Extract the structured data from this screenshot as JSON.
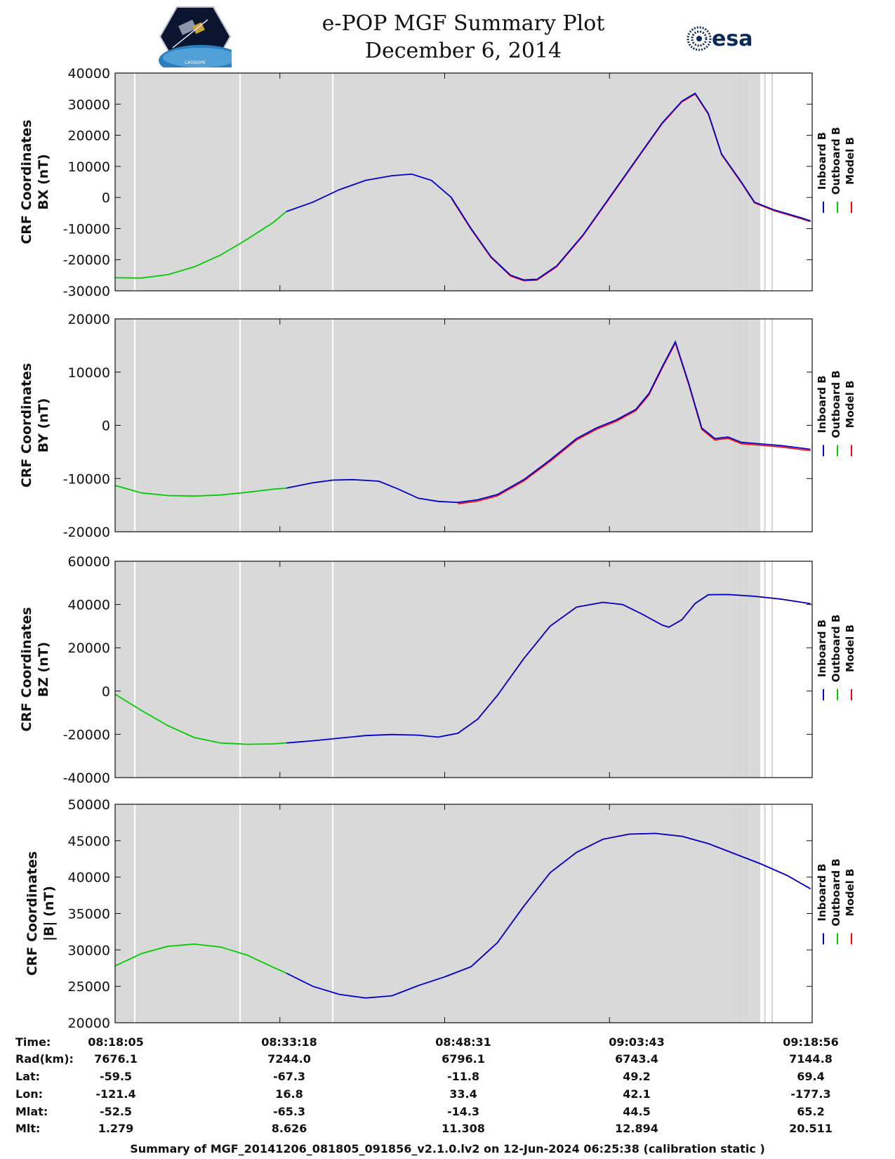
{
  "header": {
    "title": "e-POP MGF Summary Plot",
    "date": "December 6, 2014",
    "logo_left_caption": "CASSIOPE",
    "logo_right_text": "esa"
  },
  "colors": {
    "background": "#d9d9d9",
    "inboard": "#0000cc",
    "outboard": "#00cc00",
    "model": "#ff0000",
    "gap_line": "#ffffff"
  },
  "legend": {
    "labels": [
      "Inboard B",
      "Outboard B",
      "Model B"
    ],
    "mark_colors": [
      "#0000cc",
      "#00cc00",
      "#ff0000"
    ]
  },
  "chart_data": [
    {
      "type": "line",
      "title": "",
      "ylabel_line1": "CRF Coordinates",
      "ylabel_line2": "BX (nT)",
      "ylim": [
        -30000,
        40000
      ],
      "yticks": [
        -30000,
        -20000,
        -10000,
        0,
        10000,
        20000,
        30000,
        40000
      ],
      "xlim": [
        0,
        1
      ]
    },
    {
      "type": "line",
      "title": "",
      "ylabel_line1": "CRF Coordinates",
      "ylabel_line2": "BY (nT)",
      "ylim": [
        -20000,
        20000
      ],
      "yticks": [
        -20000,
        -10000,
        0,
        10000,
        20000
      ],
      "xlim": [
        0,
        1
      ]
    },
    {
      "type": "line",
      "title": "",
      "ylabel_line1": "CRF Coordinates",
      "ylabel_line2": "BZ (nT)",
      "ylim": [
        -40000,
        60000
      ],
      "yticks": [
        -40000,
        -20000,
        0,
        20000,
        40000,
        60000
      ],
      "xlim": [
        0,
        1
      ]
    },
    {
      "type": "line",
      "title": "",
      "ylabel_line1": "CRF Coordinates",
      "ylabel_line2": "|B| (nT)",
      "ylim": [
        20000,
        50000
      ],
      "yticks": [
        20000,
        25000,
        30000,
        35000,
        40000,
        45000,
        50000
      ],
      "xlim": [
        0,
        1
      ]
    }
  ],
  "series_data": {
    "outboard_end": 0.26,
    "bx": [
      [
        0,
        -25800
      ],
      [
        0.04,
        -25900
      ],
      [
        0.08,
        -24800
      ],
      [
        0.12,
        -22300
      ],
      [
        0.16,
        -18500
      ],
      [
        0.2,
        -13500
      ],
      [
        0.24,
        -8000
      ],
      [
        0.26,
        -4500
      ],
      [
        0.3,
        -1500
      ],
      [
        0.34,
        2500
      ],
      [
        0.38,
        5500
      ],
      [
        0.42,
        7000
      ],
      [
        0.45,
        7500
      ],
      [
        0.48,
        5500
      ],
      [
        0.51,
        0
      ],
      [
        0.54,
        -10000
      ],
      [
        0.57,
        -19000
      ],
      [
        0.6,
        -25000
      ],
      [
        0.62,
        -26500
      ],
      [
        0.64,
        -26300
      ],
      [
        0.67,
        -22000
      ],
      [
        0.71,
        -12000
      ],
      [
        0.75,
        0
      ],
      [
        0.79,
        12000
      ],
      [
        0.83,
        24000
      ],
      [
        0.86,
        31000
      ],
      [
        0.88,
        33500
      ],
      [
        0.9,
        27000
      ],
      [
        0.92,
        14000
      ],
      [
        0.95,
        5000
      ],
      [
        0.97,
        -1500
      ],
      [
        1.0,
        -4000
      ],
      [
        1.04,
        -6500
      ],
      [
        1.055,
        -7500
      ]
    ],
    "by": [
      [
        0,
        -11300
      ],
      [
        0.04,
        -12700
      ],
      [
        0.08,
        -13200
      ],
      [
        0.12,
        -13300
      ],
      [
        0.16,
        -13100
      ],
      [
        0.2,
        -12600
      ],
      [
        0.24,
        -12000
      ],
      [
        0.26,
        -11800
      ],
      [
        0.3,
        -10800
      ],
      [
        0.33,
        -10300
      ],
      [
        0.36,
        -10200
      ],
      [
        0.4,
        -10500
      ],
      [
        0.43,
        -12000
      ],
      [
        0.46,
        -13700
      ],
      [
        0.49,
        -14300
      ],
      [
        0.52,
        -14500
      ],
      [
        0.55,
        -14000
      ],
      [
        0.58,
        -13000
      ],
      [
        0.62,
        -10200
      ],
      [
        0.66,
        -6500
      ],
      [
        0.7,
        -2500
      ],
      [
        0.73,
        -500
      ],
      [
        0.76,
        1000
      ],
      [
        0.79,
        3000
      ],
      [
        0.81,
        6000
      ],
      [
        0.83,
        11000
      ],
      [
        0.85,
        15700
      ],
      [
        0.87,
        8000
      ],
      [
        0.89,
        -500
      ],
      [
        0.91,
        -2500
      ],
      [
        0.93,
        -2200
      ],
      [
        0.95,
        -3200
      ],
      [
        0.98,
        -3500
      ],
      [
        1.01,
        -3800
      ],
      [
        1.055,
        -4500
      ]
    ],
    "bz": [
      [
        0,
        -1500
      ],
      [
        0.04,
        -9000
      ],
      [
        0.08,
        -16000
      ],
      [
        0.12,
        -21500
      ],
      [
        0.16,
        -24000
      ],
      [
        0.2,
        -24600
      ],
      [
        0.24,
        -24400
      ],
      [
        0.26,
        -24000
      ],
      [
        0.3,
        -23000
      ],
      [
        0.34,
        -21800
      ],
      [
        0.38,
        -20600
      ],
      [
        0.42,
        -20100
      ],
      [
        0.46,
        -20400
      ],
      [
        0.49,
        -21300
      ],
      [
        0.52,
        -19500
      ],
      [
        0.55,
        -13000
      ],
      [
        0.58,
        -2000
      ],
      [
        0.62,
        15000
      ],
      [
        0.66,
        30000
      ],
      [
        0.7,
        38800
      ],
      [
        0.74,
        41000
      ],
      [
        0.77,
        40000
      ],
      [
        0.8,
        35500
      ],
      [
        0.83,
        30500
      ],
      [
        0.84,
        29500
      ],
      [
        0.86,
        33000
      ],
      [
        0.88,
        40500
      ],
      [
        0.9,
        44500
      ],
      [
        0.93,
        44600
      ],
      [
        0.97,
        43800
      ],
      [
        1.01,
        42500
      ],
      [
        1.055,
        40400
      ]
    ],
    "bmag": [
      [
        0,
        27800
      ],
      [
        0.04,
        29500
      ],
      [
        0.08,
        30500
      ],
      [
        0.12,
        30800
      ],
      [
        0.16,
        30400
      ],
      [
        0.2,
        29300
      ],
      [
        0.24,
        27600
      ],
      [
        0.26,
        26800
      ],
      [
        0.3,
        25000
      ],
      [
        0.34,
        23900
      ],
      [
        0.38,
        23400
      ],
      [
        0.42,
        23700
      ],
      [
        0.46,
        25100
      ],
      [
        0.5,
        26300
      ],
      [
        0.54,
        27700
      ],
      [
        0.58,
        31000
      ],
      [
        0.62,
        36000
      ],
      [
        0.66,
        40600
      ],
      [
        0.7,
        43400
      ],
      [
        0.74,
        45200
      ],
      [
        0.78,
        45900
      ],
      [
        0.82,
        46000
      ],
      [
        0.86,
        45600
      ],
      [
        0.9,
        44600
      ],
      [
        0.94,
        43200
      ],
      [
        0.98,
        41800
      ],
      [
        1.02,
        40200
      ],
      [
        1.055,
        38400
      ]
    ]
  },
  "info": {
    "labels": [
      "Time:",
      "Rad(km):",
      "Lat:",
      "Lon:",
      "Mlat:",
      "Mlt:"
    ],
    "columns": [
      [
        "08:18:05",
        "7676.1",
        "-59.5",
        "-121.4",
        "-52.5",
        "1.279"
      ],
      [
        "08:33:18",
        "7244.0",
        "-67.3",
        "16.8",
        "-65.3",
        "8.626"
      ],
      [
        "08:48:31",
        "6796.1",
        "-11.8",
        "33.4",
        "-14.3",
        "11.308"
      ],
      [
        "09:03:43",
        "6743.4",
        "49.2",
        "42.1",
        "44.5",
        "12.894"
      ],
      [
        "09:18:56",
        "7144.8",
        "69.4",
        "-177.3",
        "65.2",
        "20.511"
      ]
    ]
  },
  "footer": "Summary of MGF_20141206_081805_091856_v2.1.0.lv2 on 12-Jun-2024 06:25:38 (calibration static )"
}
